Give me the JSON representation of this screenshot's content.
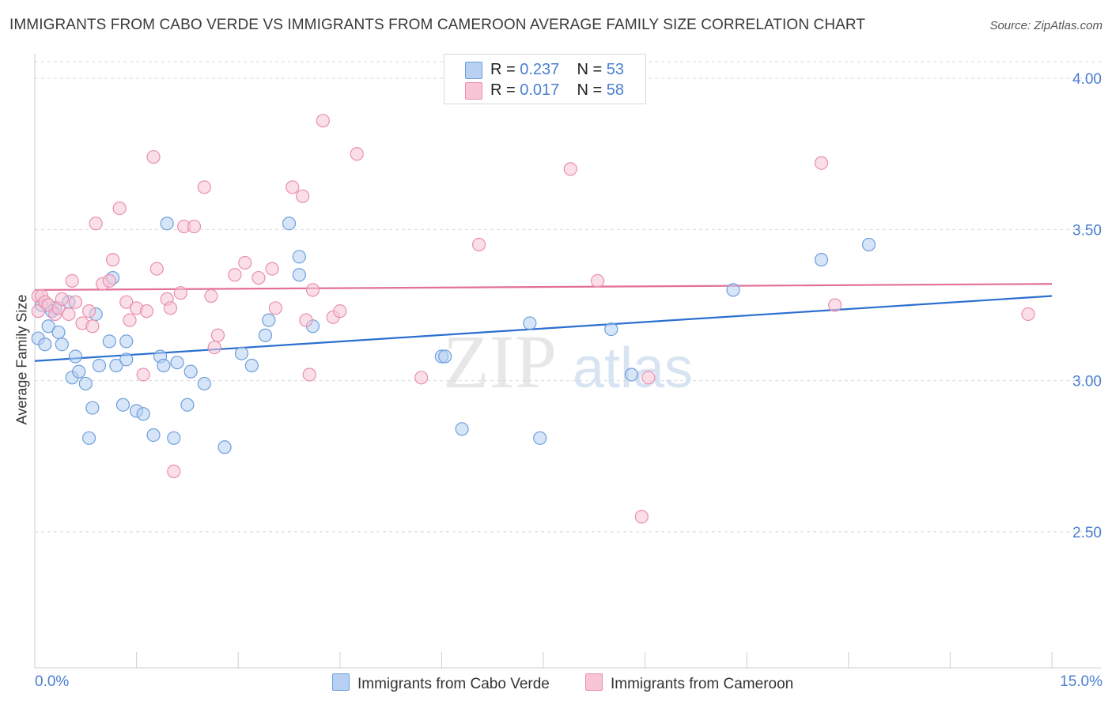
{
  "title": "IMMIGRANTS FROM CABO VERDE VS IMMIGRANTS FROM CAMEROON AVERAGE FAMILY SIZE CORRELATION CHART",
  "source": "Source: ZipAtlas.com",
  "watermark": {
    "zip": "ZIP",
    "atlas": "atlas"
  },
  "legend": {
    "r_label": "R = ",
    "n_label": "N = ",
    "series": [
      {
        "name": "Immigrants from Cabo Verde",
        "r": "0.237",
        "n": "53"
      },
      {
        "name": "Immigrants from Cameroon",
        "r": "0.017",
        "n": "58"
      }
    ]
  },
  "colors": {
    "blue_fill": "#b7d0f3",
    "blue_stroke": "#6f9fdc",
    "blue_line": "#2b6fd0",
    "pink_fill": "#f7c5d5",
    "pink_stroke": "#e98fae",
    "pink_line": "#e2709a",
    "grid": "#d9d9d9",
    "tick_text": "#4a7fd0"
  },
  "chart_data": {
    "type": "scatter",
    "title": "IMMIGRANTS FROM CABO VERDE VS IMMIGRANTS FROM CAMEROON AVERAGE FAMILY SIZE CORRELATION CHART",
    "xlabel": "",
    "ylabel": "Average Family Size",
    "xlim": [
      0,
      15
    ],
    "ylim": [
      2.05,
      4.05
    ],
    "x_tick_labels": [
      "0.0%",
      "15.0%"
    ],
    "y_ticks": [
      2.5,
      3.0,
      3.5,
      4.0
    ],
    "y_tick_labels": [
      "2.50",
      "3.00",
      "3.50",
      "4.00"
    ],
    "grid": true,
    "series": [
      {
        "name": "Immigrants from Cabo Verde",
        "color": "#6f9fdc",
        "trend": {
          "x": [
            0,
            15
          ],
          "y": [
            3.065,
            3.28
          ]
        },
        "points": [
          [
            0.05,
            3.14
          ],
          [
            0.1,
            3.25
          ],
          [
            0.15,
            3.12
          ],
          [
            0.2,
            3.18
          ],
          [
            0.3,
            3.24
          ],
          [
            0.35,
            3.16
          ],
          [
            0.4,
            3.12
          ],
          [
            0.5,
            3.26
          ],
          [
            0.55,
            3.01
          ],
          [
            0.6,
            3.08
          ],
          [
            0.65,
            3.03
          ],
          [
            0.75,
            2.99
          ],
          [
            0.85,
            2.91
          ],
          [
            0.9,
            3.22
          ],
          [
            0.95,
            3.05
          ],
          [
            1.1,
            3.13
          ],
          [
            1.15,
            3.34
          ],
          [
            1.2,
            3.05
          ],
          [
            1.3,
            2.92
          ],
          [
            1.35,
            3.07
          ],
          [
            1.35,
            3.13
          ],
          [
            1.5,
            2.9
          ],
          [
            1.6,
            2.89
          ],
          [
            1.75,
            2.82
          ],
          [
            1.85,
            3.08
          ],
          [
            1.9,
            3.05
          ],
          [
            1.95,
            3.52
          ],
          [
            2.05,
            2.81
          ],
          [
            2.1,
            3.06
          ],
          [
            2.25,
            2.92
          ],
          [
            2.3,
            3.03
          ],
          [
            2.5,
            2.99
          ],
          [
            2.8,
            2.78
          ],
          [
            3.05,
            3.09
          ],
          [
            3.2,
            3.05
          ],
          [
            3.4,
            3.15
          ],
          [
            3.45,
            3.2
          ],
          [
            3.75,
            3.52
          ],
          [
            3.9,
            3.41
          ],
          [
            3.9,
            3.35
          ],
          [
            4.1,
            3.18
          ],
          [
            6.0,
            3.08
          ],
          [
            6.05,
            3.08
          ],
          [
            6.3,
            2.84
          ],
          [
            7.3,
            3.19
          ],
          [
            7.45,
            2.81
          ],
          [
            8.5,
            3.17
          ],
          [
            8.8,
            3.02
          ],
          [
            10.3,
            3.3
          ],
          [
            11.6,
            3.4
          ],
          [
            12.3,
            3.45
          ],
          [
            0.8,
            2.81
          ],
          [
            0.25,
            3.23
          ]
        ]
      },
      {
        "name": "Immigrants from Cameroon",
        "color": "#e98fae",
        "trend": {
          "x": [
            0,
            15
          ],
          "y": [
            3.3,
            3.32
          ]
        },
        "points": [
          [
            0.05,
            3.28
          ],
          [
            0.05,
            3.23
          ],
          [
            0.1,
            3.28
          ],
          [
            0.15,
            3.26
          ],
          [
            0.2,
            3.25
          ],
          [
            0.3,
            3.22
          ],
          [
            0.35,
            3.24
          ],
          [
            0.4,
            3.27
          ],
          [
            0.5,
            3.22
          ],
          [
            0.55,
            3.33
          ],
          [
            0.6,
            3.26
          ],
          [
            0.7,
            3.19
          ],
          [
            0.8,
            3.23
          ],
          [
            0.85,
            3.18
          ],
          [
            0.9,
            3.52
          ],
          [
            1.0,
            3.32
          ],
          [
            1.1,
            3.33
          ],
          [
            1.15,
            3.4
          ],
          [
            1.25,
            3.57
          ],
          [
            1.35,
            3.26
          ],
          [
            1.4,
            3.2
          ],
          [
            1.5,
            3.24
          ],
          [
            1.6,
            3.02
          ],
          [
            1.65,
            3.23
          ],
          [
            1.75,
            3.74
          ],
          [
            1.8,
            3.37
          ],
          [
            1.95,
            3.27
          ],
          [
            2.0,
            3.24
          ],
          [
            2.05,
            2.7
          ],
          [
            2.15,
            3.29
          ],
          [
            2.2,
            3.51
          ],
          [
            2.35,
            3.51
          ],
          [
            2.5,
            3.64
          ],
          [
            2.6,
            3.28
          ],
          [
            2.65,
            3.11
          ],
          [
            2.7,
            3.15
          ],
          [
            2.95,
            3.35
          ],
          [
            3.1,
            3.39
          ],
          [
            3.3,
            3.34
          ],
          [
            3.5,
            3.37
          ],
          [
            3.55,
            3.24
          ],
          [
            3.8,
            3.64
          ],
          [
            3.95,
            3.61
          ],
          [
            4.0,
            3.2
          ],
          [
            4.05,
            3.02
          ],
          [
            4.1,
            3.3
          ],
          [
            4.25,
            3.86
          ],
          [
            4.4,
            3.21
          ],
          [
            4.5,
            3.23
          ],
          [
            4.75,
            3.75
          ],
          [
            5.7,
            3.01
          ],
          [
            6.55,
            3.45
          ],
          [
            7.9,
            3.7
          ],
          [
            8.3,
            3.33
          ],
          [
            8.95,
            2.55
          ],
          [
            9.05,
            3.01
          ],
          [
            11.6,
            3.72
          ],
          [
            11.8,
            3.25
          ],
          [
            14.65,
            3.22
          ]
        ]
      }
    ]
  }
}
